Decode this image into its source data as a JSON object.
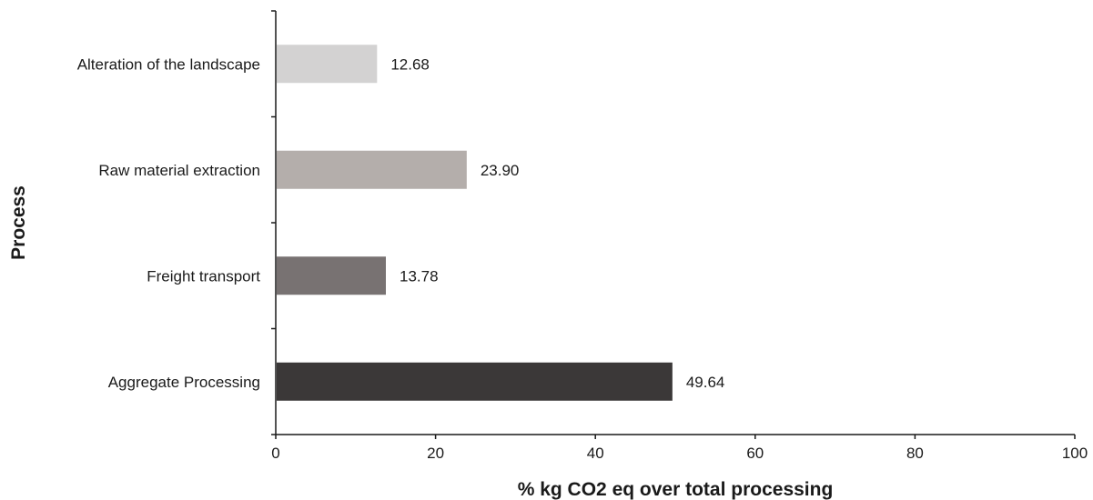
{
  "chart_data": {
    "type": "bar",
    "orientation": "horizontal",
    "categories": [
      "Alteration of the landscape",
      "Raw material extraction",
      "Freight transport",
      "Aggregate Processing"
    ],
    "values": [
      12.68,
      23.9,
      13.78,
      49.64
    ],
    "value_labels": [
      "12.68",
      "23.90",
      "13.78",
      "49.64"
    ],
    "colors": [
      "#d3d2d2",
      "#b4aeab",
      "#787272",
      "#3b3838"
    ],
    "title": "",
    "xlabel": "% kg CO2 eq over total processing",
    "ylabel": "Process",
    "xlim": [
      0,
      100
    ],
    "xticks": [
      0,
      20,
      40,
      60,
      80,
      100
    ],
    "grid": false,
    "legend": "none"
  }
}
